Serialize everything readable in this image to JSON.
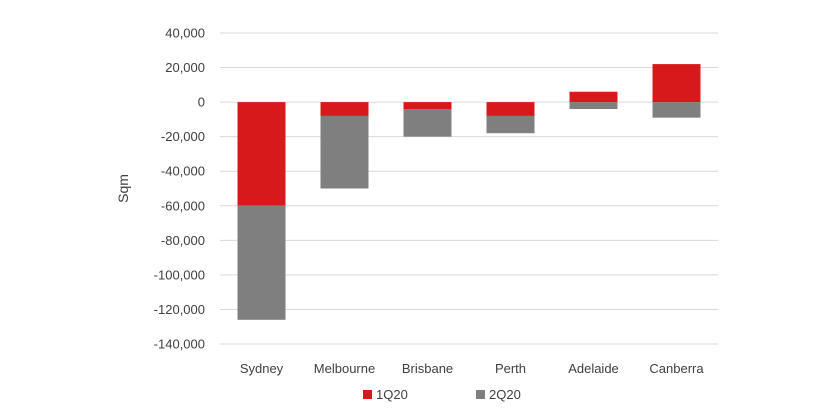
{
  "chart_data": {
    "type": "bar",
    "stacked": true,
    "title": "",
    "xlabel": "",
    "ylabel": "Sqm",
    "ylim": [
      -140000,
      40000
    ],
    "yticks": [
      40000,
      20000,
      0,
      -20000,
      -40000,
      -60000,
      -80000,
      -100000,
      -120000,
      -140000
    ],
    "ytick_labels": [
      "40,000",
      "20,000",
      "0",
      "-20,000",
      "-40,000",
      "-60,000",
      "-80,000",
      "-100,000",
      "-120,000",
      "-140,000"
    ],
    "grid": true,
    "legend_position": "bottom",
    "categories": [
      "Sydney",
      "Melbourne",
      "Brisbane",
      "Perth",
      "Adelaide",
      "Canberra"
    ],
    "series": [
      {
        "name": "1Q20",
        "color": "#d7191c",
        "values": [
          -60000,
          -8000,
          -4000,
          -8000,
          6000,
          22000
        ]
      },
      {
        "name": "2Q20",
        "color": "#7f7f7f",
        "values": [
          -66000,
          -42000,
          -16000,
          -10000,
          -4000,
          -9000
        ]
      }
    ]
  }
}
